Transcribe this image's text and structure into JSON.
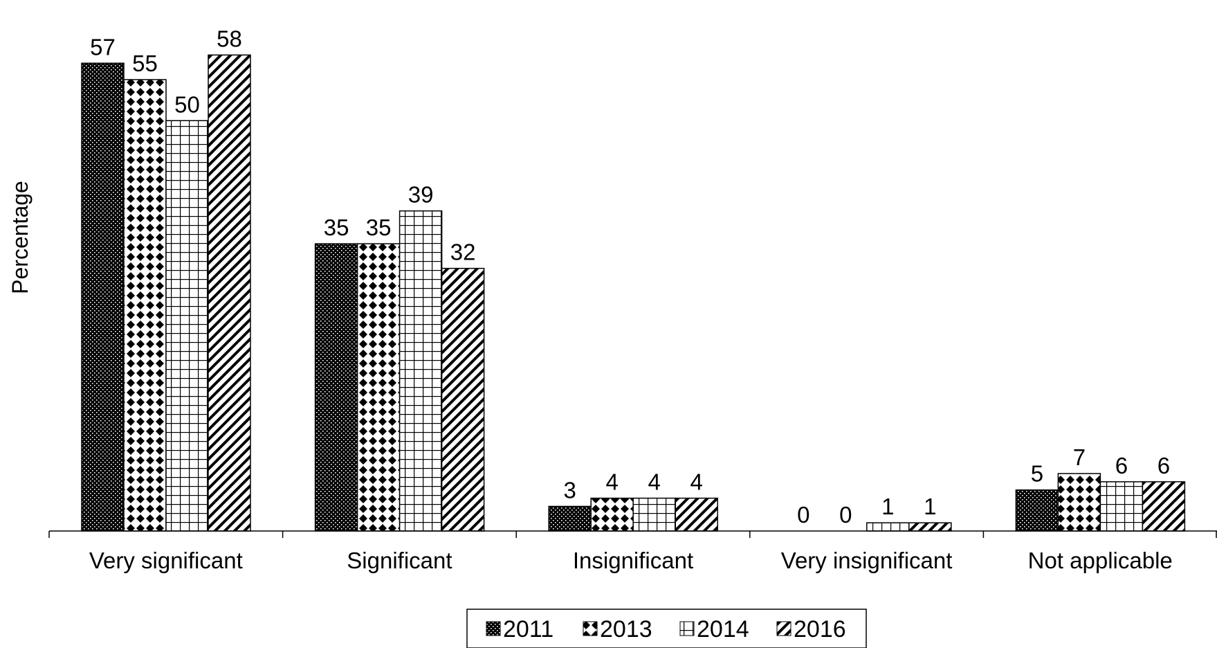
{
  "chart_data": {
    "type": "bar",
    "title": "",
    "xlabel": "",
    "ylabel": "Percentage",
    "ylim": [
      0,
      62
    ],
    "grid": false,
    "legend_position": "bottom",
    "categories": [
      "Very significant",
      "Significant",
      "Insignificant",
      "Very insignificant",
      "Not applicable"
    ],
    "series": [
      {
        "name": "2011",
        "values": [
          57,
          35,
          3,
          0,
          5
        ],
        "pattern": "dense-dots",
        "color": "#000000"
      },
      {
        "name": "2013",
        "values": [
          55,
          35,
          4,
          0,
          7
        ],
        "pattern": "diamonds",
        "color": "#000000"
      },
      {
        "name": "2014",
        "values": [
          50,
          39,
          4,
          1,
          6
        ],
        "pattern": "grid",
        "color": "#000000"
      },
      {
        "name": "2016",
        "values": [
          58,
          32,
          4,
          1,
          6
        ],
        "pattern": "diagonal",
        "color": "#000000"
      }
    ],
    "data_labels": true
  }
}
